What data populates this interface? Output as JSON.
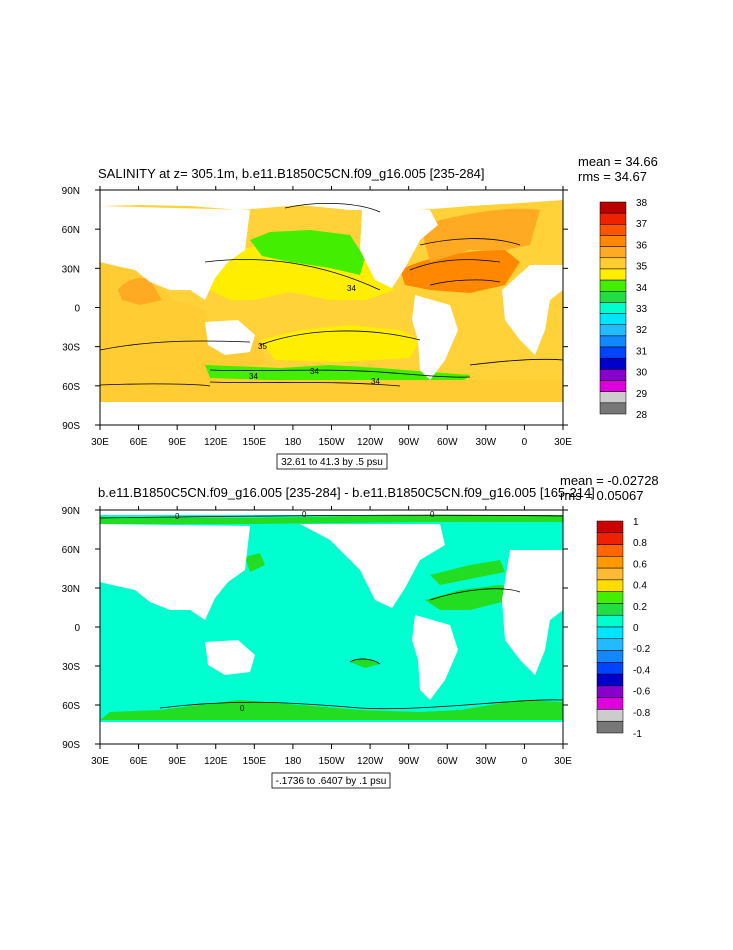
{
  "colors": {
    "land": "#ffffff",
    "ocean_high": "#f28b00",
    "ocean_mid": "#ffd23a",
    "ocean_low": "#ffcc33",
    "ocean_fresh": "#22dd22",
    "diff_base": "#00ffd0",
    "diff_pos": "#22dd22",
    "diff_warm": "#ffcc00"
  },
  "chart_data": [
    {
      "type": "heatmap",
      "title": "SALINITY at z= 305.1m, b.e11.B1850C5CN.f09_g16.005 [235-284]",
      "stats": {
        "mean": "mean = 34.66",
        "rms": "rms = 34.67"
      },
      "x_ticks": [
        "30E",
        "60E",
        "90E",
        "120E",
        "150E",
        "180",
        "150W",
        "120W",
        "90W",
        "60W",
        "30W",
        "0",
        "30E"
      ],
      "y_ticks": [
        "90N",
        "60N",
        "30N",
        "0",
        "30S",
        "60S",
        "90S"
      ],
      "range_label": "32.61 to 41.3 by .5 psu",
      "contour_labels": [
        "34",
        "35",
        "34",
        "34",
        "34"
      ],
      "colorbar": {
        "labels": [
          "38",
          "37",
          "36",
          "35",
          "34",
          "33",
          "32",
          "31",
          "30",
          "29",
          "28"
        ],
        "colors": [
          "#bb0000",
          "#ee2200",
          "#ff5500",
          "#ff8800",
          "#ffaa22",
          "#ffcc33",
          "#ffee00",
          "#44ee00",
          "#22dd44",
          "#00ffcc",
          "#00e5ff",
          "#22bbff",
          "#1188ff",
          "#0044ff",
          "#0000cc",
          "#8800cc",
          "#dd00dd",
          "#cccccc",
          "#777777"
        ]
      }
    },
    {
      "type": "heatmap",
      "title": "b.e11.B1850C5CN.f09_g16.005 [235-284] - b.e11.B1850C5CN.f09_g16.005 [165-214]",
      "stats": {
        "mean": "mean = -0.02728",
        "rms": "rms = 0.05067"
      },
      "x_ticks": [
        "30E",
        "60E",
        "90E",
        "120E",
        "150E",
        "180",
        "150W",
        "120W",
        "90W",
        "60W",
        "30W",
        "0",
        "30E"
      ],
      "y_ticks": [
        "90N",
        "60N",
        "30N",
        "0",
        "30S",
        "60S",
        "90S"
      ],
      "range_label": "-.1736 to .6407 by .1 psu",
      "contour_labels": [
        "0",
        "0",
        "0",
        "0"
      ],
      "colorbar": {
        "labels": [
          "1",
          "0.8",
          "0.6",
          "0.4",
          "0.2",
          "0",
          "-0.2",
          "-0.4",
          "-0.6",
          "-0.8",
          "-1"
        ],
        "colors": [
          "#cc0000",
          "#ee2200",
          "#ff6600",
          "#ff9900",
          "#ffbb33",
          "#ffdd00",
          "#44ee00",
          "#22dd44",
          "#00ffcc",
          "#00e5ff",
          "#22bbff",
          "#1188ff",
          "#0044ff",
          "#0000cc",
          "#8800cc",
          "#dd00dd",
          "#cccccc",
          "#777777"
        ]
      }
    }
  ]
}
